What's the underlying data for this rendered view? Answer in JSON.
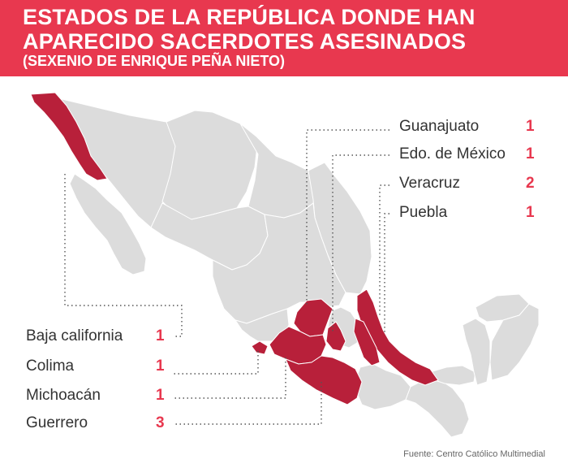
{
  "title": {
    "line1": "ESTADOS DE LA REPÚBLICA DONDE HAN",
    "line2": "APARECIDO SACERDOTES ASESINADOS",
    "line3": "(SEXENIO DE ENRIQUE PEÑA NIETO)"
  },
  "colors": {
    "accent": "#e8384f",
    "highlight": "#b8203a",
    "land": "#dcdcdc",
    "border": "#ffffff"
  },
  "states_right": [
    {
      "name": "Guanajuato",
      "count": "1"
    },
    {
      "name": "Edo. de México",
      "count": "1"
    },
    {
      "name": "Veracruz",
      "count": "2"
    },
    {
      "name": "Puebla",
      "count": "1"
    }
  ],
  "states_left": [
    {
      "name": "Baja california",
      "count": "1"
    },
    {
      "name": "Colima",
      "count": "1"
    },
    {
      "name": "Michoacán",
      "count": "1"
    },
    {
      "name": "Guerrero",
      "count": "3"
    }
  ],
  "source": "Fuente: Centro Católico Multimedial"
}
